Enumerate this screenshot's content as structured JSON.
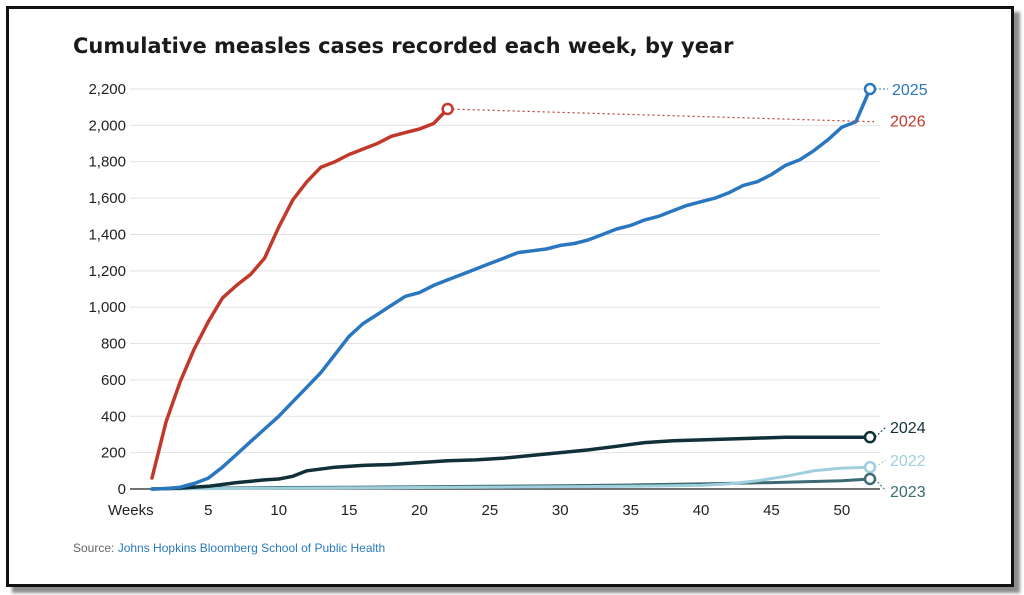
{
  "title": "Cumulative measles cases recorded each week, by year",
  "source_prefix": "Source: ",
  "source_name": "Johns Hopkins Bloomberg School of Public Health",
  "chart_data": {
    "type": "line",
    "title": "Cumulative measles cases recorded each week, by year",
    "xlabel": "Weeks",
    "ylabel": "",
    "xlim": [
      1,
      52
    ],
    "ylim": [
      0,
      2200
    ],
    "x_ticks": [
      5,
      10,
      15,
      20,
      25,
      30,
      35,
      40,
      45,
      50
    ],
    "y_ticks": [
      0,
      200,
      400,
      600,
      800,
      1000,
      1200,
      1400,
      1600,
      1800,
      2000,
      2200
    ],
    "grid": "horizontal",
    "series": [
      {
        "name": "2025",
        "color": "#2b77bf",
        "x": [
          1,
          2,
          3,
          4,
          5,
          6,
          7,
          8,
          9,
          10,
          11,
          12,
          13,
          14,
          15,
          16,
          17,
          18,
          19,
          20,
          21,
          22,
          23,
          24,
          25,
          26,
          27,
          28,
          29,
          30,
          31,
          32,
          33,
          34,
          35,
          36,
          37,
          38,
          39,
          40,
          41,
          42,
          43,
          44,
          45,
          46,
          47,
          48,
          49,
          50,
          51,
          52
        ],
        "values": [
          0,
          2,
          10,
          30,
          60,
          120,
          190,
          260,
          330,
          400,
          480,
          560,
          640,
          740,
          840,
          910,
          960,
          1010,
          1060,
          1080,
          1120,
          1150,
          1180,
          1210,
          1240,
          1270,
          1300,
          1310,
          1320,
          1340,
          1350,
          1370,
          1400,
          1430,
          1450,
          1480,
          1500,
          1530,
          1560,
          1580,
          1600,
          1630,
          1670,
          1690,
          1730,
          1780,
          1810,
          1860,
          1920,
          1990,
          2020,
          2200
        ]
      },
      {
        "name": "2026",
        "color": "#c0392b",
        "x": [
          1,
          2,
          3,
          4,
          5,
          6,
          7,
          8,
          9,
          10,
          11,
          12,
          13,
          14,
          15,
          16,
          17,
          18,
          19,
          20,
          21,
          22
        ],
        "values": [
          60,
          370,
          590,
          770,
          920,
          1050,
          1120,
          1180,
          1270,
          1440,
          1590,
          1690,
          1770,
          1800,
          1840,
          1870,
          1900,
          1940,
          1960,
          1980,
          2010,
          2090
        ],
        "projection_to": [
          52,
          2020
        ]
      },
      {
        "name": "2024",
        "color": "#12303a",
        "x": [
          1,
          3,
          5,
          7,
          9,
          10,
          11,
          12,
          14,
          16,
          18,
          20,
          22,
          24,
          26,
          28,
          30,
          32,
          34,
          36,
          38,
          40,
          42,
          44,
          46,
          48,
          50,
          52
        ],
        "values": [
          0,
          5,
          15,
          35,
          50,
          55,
          70,
          100,
          120,
          130,
          135,
          145,
          155,
          160,
          170,
          185,
          200,
          215,
          235,
          255,
          265,
          270,
          275,
          280,
          285,
          285,
          285,
          285
        ]
      },
      {
        "name": "2022",
        "color": "#9fcfdc",
        "x": [
          1,
          5,
          10,
          15,
          20,
          25,
          30,
          35,
          40,
          42,
          44,
          46,
          48,
          50,
          52
        ],
        "values": [
          0,
          2,
          4,
          6,
          8,
          10,
          12,
          15,
          20,
          28,
          45,
          70,
          100,
          115,
          120
        ]
      },
      {
        "name": "2023",
        "color": "#3d6b73",
        "x": [
          1,
          5,
          10,
          15,
          20,
          25,
          30,
          35,
          40,
          45,
          50,
          52
        ],
        "values": [
          0,
          5,
          8,
          10,
          12,
          15,
          18,
          22,
          28,
          35,
          45,
          55
        ]
      }
    ]
  }
}
